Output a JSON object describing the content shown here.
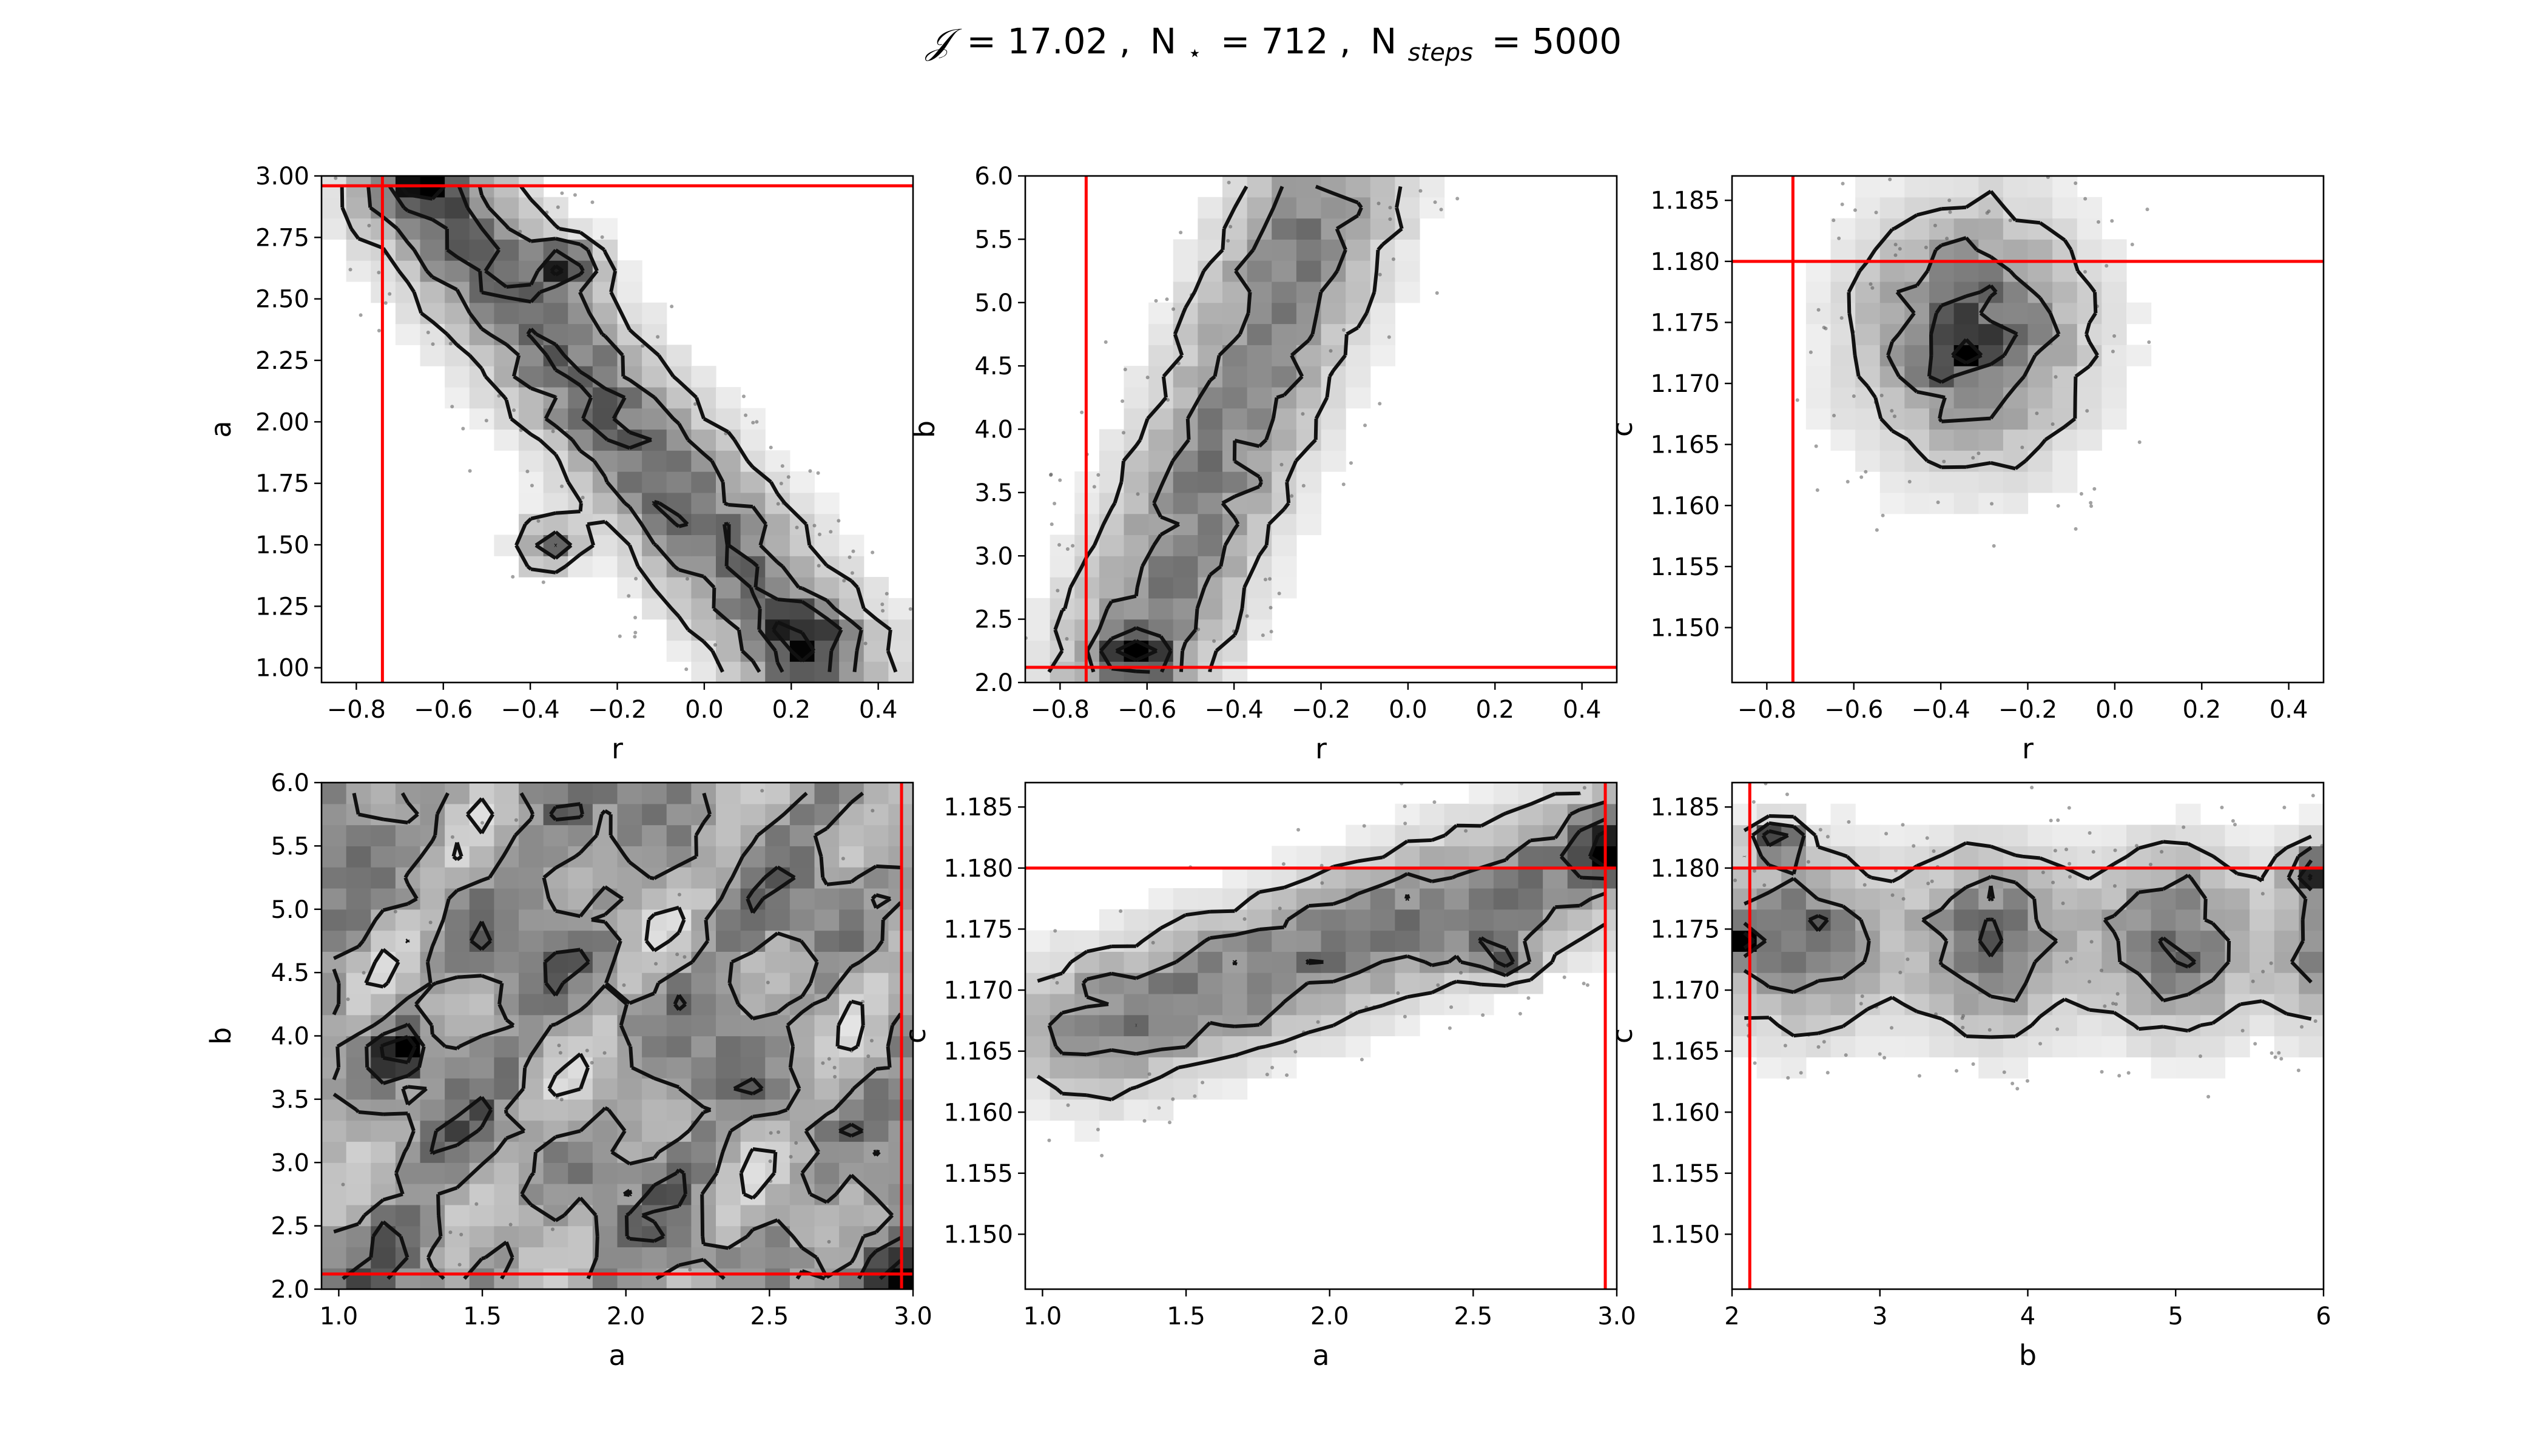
{
  "title": {
    "j_symbol": "𝒥",
    "j_value": "= 17.02 ,",
    "nstar_text": "N",
    "nstar_sub": "⋆",
    "nstar_value": "= 712 ,",
    "nsteps_text": "N",
    "nsteps_sub": "steps",
    "nsteps_value": "= 5000"
  },
  "colors": {
    "truth_line": "#ff0000",
    "contour": "#111111",
    "hist_max": "#000000"
  },
  "chart_data": [
    {
      "type": "heatmap",
      "xlabel": "r",
      "ylabel": "a",
      "xlim": [
        -0.88,
        0.48
      ],
      "ylim": [
        0.94,
        3.0
      ],
      "xticks": [
        "-0.8",
        "-0.6",
        "-0.4",
        "-0.2",
        "0.0",
        "0.2",
        "0.4"
      ],
      "yticks": [
        "1.00",
        "1.25",
        "1.50",
        "1.75",
        "2.00",
        "2.25",
        "2.50",
        "2.75",
        "3.00"
      ],
      "truth": {
        "x": -0.74,
        "y": 2.96
      },
      "density_ridge": {
        "from": [
          -0.65,
          2.95
        ],
        "to": [
          0.25,
          1.05
        ],
        "width": 0.12
      },
      "peaks": [
        [
          -0.64,
          2.95
        ],
        [
          -0.31,
          2.64
        ],
        [
          -0.36,
          1.5
        ],
        [
          0.23,
          1.1
        ]
      ]
    },
    {
      "type": "heatmap",
      "xlabel": "r",
      "ylabel": "b",
      "xlim": [
        -0.88,
        0.48
      ],
      "ylim": [
        2.0,
        6.0
      ],
      "xticks": [
        "-0.8",
        "-0.6",
        "-0.4",
        "-0.2",
        "0.0",
        "0.2",
        "0.4"
      ],
      "yticks": [
        "2.0",
        "2.5",
        "3.0",
        "3.5",
        "4.0",
        "4.5",
        "5.0",
        "5.5",
        "6.0"
      ],
      "truth": {
        "x": -0.74,
        "y": 2.12
      },
      "density_ridge": {
        "from": [
          -0.63,
          2.2
        ],
        "to": [
          -0.2,
          5.8
        ],
        "width": 0.13
      },
      "peaks": [
        [
          -0.63,
          2.25
        ]
      ]
    },
    {
      "type": "heatmap",
      "xlabel": "r",
      "ylabel": "c",
      "xlim": [
        -0.88,
        0.48
      ],
      "ylim": [
        1.1455,
        1.187
      ],
      "xticks": [
        "-0.8",
        "-0.6",
        "-0.4",
        "-0.2",
        "0.0",
        "0.2",
        "0.4"
      ],
      "yticks": [
        "1.150",
        "1.155",
        "1.160",
        "1.165",
        "1.170",
        "1.175",
        "1.180",
        "1.185"
      ],
      "truth": {
        "x": -0.74,
        "y": 1.18
      },
      "density_center": [
        -0.33,
        1.174
      ],
      "peaks": [
        [
          -0.36,
          1.173
        ]
      ]
    },
    {
      "type": "heatmap",
      "xlabel": "a",
      "ylabel": "b",
      "xlim": [
        0.94,
        3.0
      ],
      "ylim": [
        2.0,
        6.0
      ],
      "xticks": [
        "1.0",
        "1.5",
        "2.0",
        "2.5",
        "3.0"
      ],
      "yticks": [
        "2.0",
        "2.5",
        "3.0",
        "3.5",
        "4.0",
        "4.5",
        "5.0",
        "5.5",
        "6.0"
      ],
      "truth": {
        "x": 2.96,
        "y": 2.12
      },
      "distribution": "broad",
      "peaks": [
        [
          2.95,
          2.1
        ],
        [
          1.2,
          3.9
        ]
      ]
    },
    {
      "type": "heatmap",
      "xlabel": "a",
      "ylabel": "c",
      "xlim": [
        0.94,
        3.0
      ],
      "ylim": [
        1.1455,
        1.187
      ],
      "xticks": [
        "1.0",
        "1.5",
        "2.0",
        "2.5",
        "3.0"
      ],
      "yticks": [
        "1.150",
        "1.155",
        "1.160",
        "1.165",
        "1.170",
        "1.175",
        "1.180",
        "1.185"
      ],
      "truth": {
        "x": 2.96,
        "y": 1.18
      },
      "density_ridge": {
        "from": [
          1.2,
          1.167
        ],
        "to": [
          2.95,
          1.181
        ],
        "width": 0.004
      },
      "peaks": [
        [
          2.95,
          1.182
        ],
        [
          2.6,
          1.173
        ]
      ]
    },
    {
      "type": "heatmap",
      "xlabel": "b",
      "ylabel": "c",
      "xlim": [
        2.0,
        6.0
      ],
      "ylim": [
        1.1455,
        1.187
      ],
      "xticks": [
        "2",
        "3",
        "4",
        "5",
        "6"
      ],
      "yticks": [
        "1.150",
        "1.155",
        "1.160",
        "1.165",
        "1.170",
        "1.175",
        "1.180",
        "1.185"
      ],
      "truth": {
        "x": 2.12,
        "y": 1.18
      },
      "density_band": {
        "y": 1.174,
        "width": 0.005
      },
      "peaks": [
        [
          2.3,
          1.182
        ],
        [
          5.95,
          1.18
        ],
        [
          2.05,
          1.174
        ]
      ]
    }
  ]
}
